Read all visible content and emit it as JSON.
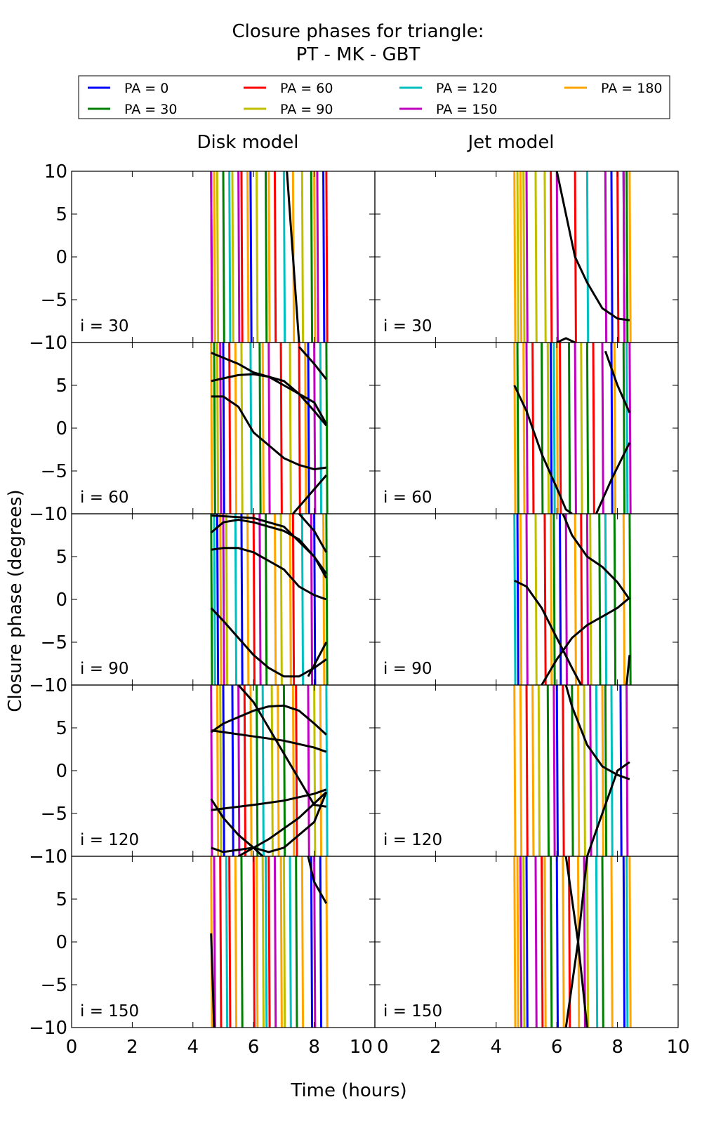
{
  "chart_data": {
    "type": "line",
    "title": [
      "Closure phases for triangle:",
      "PT - MK - GBT"
    ],
    "xlabel": "Time (hours)",
    "ylabel": "Closure phase (degrees)",
    "column_titles": [
      "Disk model",
      "Jet model"
    ],
    "row_labels": [
      "i = 30",
      "i = 60",
      "i = 90",
      "i = 120",
      "i = 150"
    ],
    "xlim": [
      0,
      10
    ],
    "ylim": [
      -10,
      10
    ],
    "xticks": [
      0,
      2,
      4,
      6,
      8,
      10
    ],
    "yticks": [
      -10,
      -5,
      0,
      5,
      10
    ],
    "legend": {
      "placement": "top",
      "entries": [
        {
          "label": "PA = 0",
          "color": "#0000ff"
        },
        {
          "label": "PA = 30",
          "color": "#008000"
        },
        {
          "label": "PA = 60",
          "color": "#ff0000"
        },
        {
          "label": "PA = 90",
          "color": "#bfbf00"
        },
        {
          "label": "PA = 120",
          "color": "#00bfbf"
        },
        {
          "label": "PA = 150",
          "color": "#bf00bf"
        },
        {
          "label": "PA = 180",
          "color": "#ffa500"
        }
      ]
    },
    "black_color": "#000000",
    "panels": [
      {
        "row": 0,
        "col": 0,
        "wraps": [
          [
            4.6,
            5.9,
            8.3
          ],
          [
            5.0,
            6.4,
            7.9
          ],
          [
            5.6,
            6.7,
            8.4
          ],
          [
            4.8,
            5.3,
            6.1,
            7.6
          ],
          [
            5.2,
            7.0
          ],
          [
            4.6,
            5.5,
            8.1
          ],
          [
            4.7,
            5.8,
            6.5,
            7.3,
            8.0
          ]
        ],
        "curves": [
          [
            [
              7.1,
              10
            ],
            [
              7.3,
              0
            ],
            [
              7.5,
              -10
            ]
          ]
        ]
      },
      {
        "row": 0,
        "col": 1,
        "wraps": [
          [
            7.8,
            8.2
          ],
          [
            8.3
          ],
          [
            5.8,
            6.6,
            8.0
          ],
          [
            4.7,
            4.9,
            5.3,
            5.6
          ],
          [
            7.0
          ],
          [
            5.0,
            6.0,
            7.6,
            8.2
          ],
          [
            4.6,
            4.8,
            8.4
          ]
        ],
        "curves": [
          [
            [
              6.0,
              10
            ],
            [
              6.3,
              5
            ],
            [
              6.6,
              0
            ],
            [
              7.0,
              -3
            ],
            [
              7.5,
              -6
            ],
            [
              8.0,
              -7.2
            ],
            [
              8.4,
              -7.4
            ]
          ],
          [
            [
              6.0,
              -10
            ],
            [
              6.3,
              -9.5
            ],
            [
              6.6,
              -10
            ]
          ]
        ]
      },
      {
        "row": 1,
        "col": 0,
        "wraps": [
          [
            5.0,
            7.8
          ],
          [
            4.7,
            6.2,
            8.4
          ],
          [
            5.2,
            6.9,
            7.5
          ],
          [
            4.8,
            5.6,
            7.2
          ],
          [
            5.9,
            8.2
          ],
          [
            4.9,
            6.5,
            8.0
          ],
          [
            4.6,
            5.4,
            6.3,
            7.7
          ]
        ],
        "curves": [
          [
            [
              4.6,
              8.8
            ],
            [
              5.5,
              7.5
            ],
            [
              6.0,
              6.5
            ],
            [
              7.0,
              5.5
            ],
            [
              7.5,
              4
            ],
            [
              8.0,
              3
            ],
            [
              8.4,
              0.5
            ]
          ],
          [
            [
              4.6,
              5.5
            ],
            [
              5.5,
              6.2
            ],
            [
              6.0,
              6.3
            ],
            [
              6.5,
              6
            ],
            [
              7.0,
              5
            ],
            [
              7.5,
              4
            ],
            [
              8.0,
              2
            ],
            [
              8.4,
              0.3
            ]
          ],
          [
            [
              4.6,
              3.7
            ],
            [
              5.0,
              3.7
            ],
            [
              5.5,
              2.5
            ],
            [
              6.0,
              -0.5
            ],
            [
              6.5,
              -2
            ],
            [
              7.0,
              -3.5
            ],
            [
              7.5,
              -4.3
            ],
            [
              8.0,
              -4.8
            ],
            [
              8.4,
              -4.6
            ]
          ],
          [
            [
              7.3,
              -10
            ],
            [
              8.4,
              -5.5
            ]
          ],
          [
            [
              7.5,
              9.5
            ],
            [
              8.0,
              7.5
            ],
            [
              8.4,
              5.7
            ]
          ]
        ]
      },
      {
        "row": 1,
        "col": 1,
        "wraps": [
          [
            5.8,
            7.8
          ],
          [
            4.7,
            5.5,
            6.4,
            7.0,
            8.2
          ],
          [
            5.2,
            6.1,
            7.2
          ],
          [
            5.7,
            6.8
          ],
          [
            5.9,
            8.3
          ],
          [
            5.0,
            6.6,
            7.5,
            8.4
          ],
          [
            4.6,
            4.9,
            6.0,
            7.9
          ]
        ],
        "curves": [
          [
            [
              4.6,
              5
            ],
            [
              5.0,
              2
            ],
            [
              5.5,
              -3
            ],
            [
              6.0,
              -7
            ],
            [
              6.3,
              -9.5
            ],
            [
              6.5,
              -10
            ]
          ],
          [
            [
              7.3,
              -10
            ],
            [
              7.8,
              -6
            ],
            [
              8.4,
              -1.7
            ]
          ],
          [
            [
              7.6,
              9
            ],
            [
              8.0,
              5
            ],
            [
              8.4,
              1.8
            ]
          ]
        ]
      },
      {
        "row": 2,
        "col": 0,
        "wraps": [
          [
            4.8,
            5.6,
            8.0
          ],
          [
            4.6,
            6.4,
            8.4
          ],
          [
            6.0,
            7.3
          ],
          [
            5.1,
            6.9
          ],
          [
            4.7,
            5.4,
            7.6
          ],
          [
            5.0,
            6.2,
            7.9
          ],
          [
            4.9,
            5.8,
            6.7,
            7.2,
            8.3
          ]
        ],
        "curves": [
          [
            [
              4.6,
              7.8
            ],
            [
              5.0,
              9
            ],
            [
              5.5,
              9.3
            ],
            [
              6.0,
              9
            ],
            [
              7.0,
              8
            ],
            [
              7.5,
              7
            ],
            [
              8.0,
              5
            ],
            [
              8.4,
              3
            ]
          ],
          [
            [
              4.6,
              5.8
            ],
            [
              5.0,
              6
            ],
            [
              5.5,
              6
            ],
            [
              6.0,
              5.5
            ],
            [
              7.0,
              3.5
            ],
            [
              7.5,
              1.5
            ],
            [
              8.0,
              0.5
            ],
            [
              8.4,
              0
            ]
          ],
          [
            [
              4.6,
              -1
            ],
            [
              5.0,
              -2.5
            ],
            [
              5.5,
              -4.5
            ],
            [
              6.0,
              -6.5
            ],
            [
              6.5,
              -8
            ],
            [
              7.0,
              -9
            ],
            [
              7.5,
              -9
            ],
            [
              8.0,
              -8
            ],
            [
              8.4,
              -7
            ]
          ],
          [
            [
              4.6,
              9.8
            ],
            [
              6.0,
              9.5
            ],
            [
              7.0,
              8.5
            ],
            [
              8.0,
              5
            ],
            [
              8.4,
              2.5
            ]
          ],
          [
            [
              7.8,
              -9
            ],
            [
              8.4,
              -5
            ]
          ],
          [
            [
              7.5,
              10
            ],
            [
              8.0,
              8
            ],
            [
              8.4,
              5.5
            ]
          ]
        ]
      },
      {
        "row": 2,
        "col": 1,
        "wraps": [
          [
            4.7,
            6.1
          ],
          [
            5.9,
            7.4,
            7.9,
            8.4
          ],
          [
            5.6,
            6.8
          ],
          [
            5.3,
            7.1
          ],
          [
            4.6,
            7.6
          ],
          [
            5.0,
            6.3,
            7.0
          ],
          [
            4.8,
            5.8,
            6.6,
            8.2
          ]
        ],
        "curves": [
          [
            [
              4.6,
              2.2
            ],
            [
              5.0,
              1.5
            ],
            [
              5.5,
              -1
            ],
            [
              6.0,
              -4.5
            ],
            [
              6.5,
              -8
            ],
            [
              6.8,
              -10
            ]
          ],
          [
            [
              5.5,
              -10
            ],
            [
              6.0,
              -7
            ],
            [
              6.5,
              -4.5
            ],
            [
              7.0,
              -3
            ],
            [
              7.5,
              -2
            ],
            [
              8.0,
              -1
            ],
            [
              8.4,
              0.2
            ]
          ],
          [
            [
              6.2,
              10
            ],
            [
              6.5,
              7.5
            ],
            [
              7.0,
              5
            ],
            [
              7.5,
              3.8
            ],
            [
              8.0,
              2
            ],
            [
              8.4,
              0
            ]
          ],
          [
            [
              8.3,
              -10
            ],
            [
              8.4,
              -6.5
            ]
          ]
        ]
      },
      {
        "row": 3,
        "col": 0,
        "wraps": [
          [
            5.0,
            5.3
          ],
          [
            6.1,
            7.0
          ],
          [
            5.7,
            7.4
          ],
          [
            4.9,
            6.6,
            8.0
          ],
          [
            6.3,
            8.4
          ],
          [
            4.6,
            5.5,
            7.8
          ],
          [
            4.8,
            5.9,
            6.8,
            7.3,
            8.2
          ]
        ],
        "curves": [
          [
            [
              4.6,
              4.5
            ],
            [
              5.0,
              5.5
            ],
            [
              6.0,
              7
            ],
            [
              6.5,
              7.5
            ],
            [
              7.0,
              7.6
            ],
            [
              7.5,
              7
            ],
            [
              8.0,
              5.5
            ],
            [
              8.4,
              4.2
            ]
          ],
          [
            [
              4.6,
              4.7
            ],
            [
              6.0,
              4
            ],
            [
              7.0,
              3.5
            ],
            [
              8.0,
              2.7
            ],
            [
              8.4,
              2.2
            ]
          ],
          [
            [
              4.6,
              -4.6
            ],
            [
              6.0,
              -4
            ],
            [
              7.0,
              -3.5
            ],
            [
              8.0,
              -2.7
            ],
            [
              8.4,
              -2.2
            ]
          ],
          [
            [
              4.6,
              -3.3
            ],
            [
              5.0,
              -5.5
            ],
            [
              5.5,
              -7.5
            ],
            [
              6.0,
              -9
            ],
            [
              6.3,
              -10
            ]
          ],
          [
            [
              4.6,
              -9
            ],
            [
              5.0,
              -9.5
            ],
            [
              6.0,
              -9
            ],
            [
              6.5,
              -9.5
            ],
            [
              7.0,
              -9
            ],
            [
              8.0,
              -6
            ],
            [
              8.4,
              -2.5
            ]
          ],
          [
            [
              5.5,
              -10
            ],
            [
              6.5,
              -8
            ],
            [
              7.5,
              -5.5
            ],
            [
              8.4,
              -2.5
            ]
          ],
          [
            [
              5.5,
              10
            ],
            [
              6.0,
              8
            ],
            [
              6.5,
              5
            ],
            [
              7.0,
              2
            ],
            [
              7.5,
              -1
            ],
            [
              8.0,
              -4
            ],
            [
              8.4,
              -4.2
            ]
          ]
        ]
      },
      {
        "row": 3,
        "col": 1,
        "wraps": [
          [
            6.0,
            8.1
          ],
          [
            5.7,
            6.5,
            7.6
          ],
          [
            5.0,
            6.2
          ],
          [
            5.4,
            6.9
          ],
          [
            7.3,
            7.8
          ],
          [
            5.9,
            7.1,
            8.3
          ],
          [
            4.6,
            4.8,
            5.2,
            6.7,
            7.5
          ]
        ],
        "curves": [
          [
            [
              6.3,
              10
            ],
            [
              6.5,
              7.5
            ],
            [
              7.0,
              3
            ],
            [
              7.5,
              0.5
            ],
            [
              8.0,
              -0.5
            ],
            [
              8.4,
              -1
            ]
          ],
          [
            [
              7.0,
              -10
            ],
            [
              7.5,
              -5
            ],
            [
              8.0,
              0
            ],
            [
              8.4,
              1
            ]
          ]
        ]
      },
      {
        "row": 4,
        "col": 0,
        "wraps": [
          [
            7.9,
            8.2
          ],
          [
            5.6,
            7.4
          ],
          [
            4.9,
            5.2,
            6.0,
            6.5
          ],
          [
            6.3,
            7.0
          ],
          [
            5.1,
            6.4,
            7.2
          ],
          [
            4.7,
            6.7,
            8.0
          ],
          [
            4.6,
            5.4,
            6.1,
            6.9,
            7.6,
            8.4
          ]
        ],
        "curves": [
          [
            [
              4.6,
              1
            ],
            [
              4.7,
              -10
            ]
          ],
          [
            [
              7.8,
              10
            ],
            [
              8.0,
              7
            ],
            [
              8.4,
              4.5
            ]
          ]
        ]
      },
      {
        "row": 4,
        "col": 1,
        "wraps": [
          [
            5.0,
            6.0,
            8.2
          ],
          [
            5.8,
            7.5
          ],
          [
            5.5,
            6.4
          ],
          [
            4.9,
            7.0
          ],
          [
            7.3,
            8.3
          ],
          [
            4.8,
            5.3,
            6.9
          ],
          [
            4.6,
            4.7,
            5.6,
            6.2,
            6.7,
            7.8,
            8.4
          ]
        ],
        "curves": [
          [
            [
              6.3,
              10
            ],
            [
              6.7,
              0
            ],
            [
              7.0,
              -10
            ]
          ],
          [
            [
              6.3,
              -10
            ],
            [
              6.7,
              0
            ],
            [
              7.0,
              10
            ]
          ]
        ]
      }
    ]
  }
}
